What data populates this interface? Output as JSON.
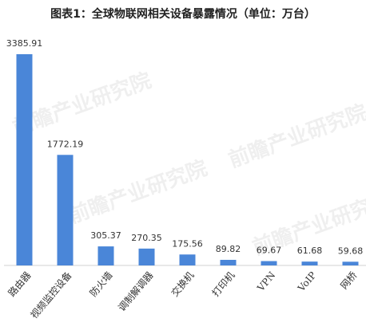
{
  "chart_data": {
    "type": "bar",
    "title": "图表1：全球物联网相关设备暴露情况（单位：万台）",
    "watermark": "前瞻产业研究院",
    "categories": [
      "路由器",
      "视频监控设备",
      "防火墙",
      "调制解调器",
      "交换机",
      "打印机",
      "VPN",
      "VoIP",
      "网桥"
    ],
    "values": [
      3385.91,
      1772.19,
      305.37,
      270.35,
      175.56,
      89.82,
      69.67,
      61.68,
      59.68
    ],
    "color": "#4a86d8"
  }
}
